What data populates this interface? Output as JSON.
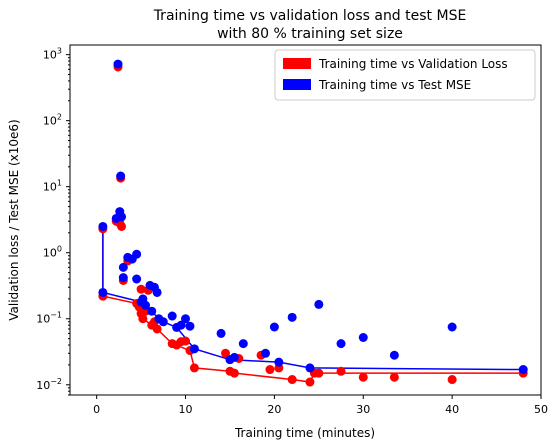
{
  "chart_data": {
    "type": "scatter",
    "title_lines": [
      "Training time vs validation loss and test MSE",
      "with 80 % training set size"
    ],
    "xlabel": "Training time (minutes)",
    "ylabel": "Validation loss / Test MSE (x10e6)",
    "xlim": [
      -3,
      50
    ],
    "ylim": [
      0.007,
      1400
    ],
    "yscale": "log",
    "xticks": [
      0,
      10,
      20,
      30,
      40,
      50
    ],
    "xtick_labels": [
      "0",
      "10",
      "20",
      "30",
      "40",
      "50"
    ],
    "yticks": [
      0.01,
      0.1,
      1,
      10,
      100,
      1000
    ],
    "ytick_labels": [
      {
        "base": "10",
        "exp": "−2"
      },
      {
        "base": "10",
        "exp": "−1"
      },
      {
        "base": "10",
        "exp": "0"
      },
      {
        "base": "10",
        "exp": "1"
      },
      {
        "base": "10",
        "exp": "2"
      },
      {
        "base": "10",
        "exp": "3"
      }
    ],
    "legend_position": "top-right",
    "series": [
      {
        "name": "Training time vs Validation Loss",
        "color": "#ff0000",
        "points": [
          [
            0.7,
            2.3
          ],
          [
            0.7,
            0.22
          ],
          [
            2.2,
            3.0
          ],
          [
            2.4,
            650
          ],
          [
            2.6,
            2.8
          ],
          [
            2.7,
            13.5
          ],
          [
            2.8,
            2.5
          ],
          [
            3.0,
            0.38
          ],
          [
            3.5,
            0.75
          ],
          [
            4.5,
            0.17
          ],
          [
            4.8,
            0.15
          ],
          [
            5.0,
            0.28
          ],
          [
            5.0,
            0.12
          ],
          [
            5.2,
            0.1
          ],
          [
            5.5,
            0.13
          ],
          [
            5.8,
            0.27
          ],
          [
            6.2,
            0.08
          ],
          [
            6.5,
            0.09
          ],
          [
            6.8,
            0.07
          ],
          [
            8.5,
            0.042
          ],
          [
            9.0,
            0.04
          ],
          [
            9.5,
            0.045
          ],
          [
            10.0,
            0.046
          ],
          [
            10.5,
            0.033
          ],
          [
            11.0,
            0.018
          ],
          [
            14.5,
            0.03
          ],
          [
            15.0,
            0.016
          ],
          [
            15.5,
            0.015
          ],
          [
            16.0,
            0.025
          ],
          [
            18.5,
            0.028
          ],
          [
            19.5,
            0.017
          ],
          [
            20.5,
            0.018
          ],
          [
            22.0,
            0.012
          ],
          [
            24.0,
            0.011
          ],
          [
            24.5,
            0.015
          ],
          [
            25.0,
            0.015
          ],
          [
            27.5,
            0.016
          ],
          [
            30.0,
            0.013
          ],
          [
            33.5,
            0.013
          ],
          [
            40.0,
            0.012
          ],
          [
            48.0,
            0.015
          ]
        ],
        "line": [
          [
            0.7,
            2.3
          ],
          [
            0.7,
            0.22
          ],
          [
            4.5,
            0.17
          ],
          [
            5.2,
            0.1
          ],
          [
            6.8,
            0.07
          ],
          [
            8.5,
            0.042
          ],
          [
            10.5,
            0.033
          ],
          [
            11.0,
            0.018
          ],
          [
            15.0,
            0.016
          ],
          [
            15.5,
            0.015
          ],
          [
            22.0,
            0.012
          ],
          [
            24.0,
            0.011
          ],
          [
            24.5,
            0.015
          ],
          [
            48.0,
            0.015
          ]
        ]
      },
      {
        "name": "Training time vs Test MSE",
        "color": "#0000ff",
        "points": [
          [
            0.7,
            2.5
          ],
          [
            0.7,
            0.25
          ],
          [
            2.2,
            3.3
          ],
          [
            2.4,
            720
          ],
          [
            2.6,
            4.2
          ],
          [
            2.7,
            14.5
          ],
          [
            2.8,
            3.5
          ],
          [
            3.0,
            0.6
          ],
          [
            3.0,
            0.42
          ],
          [
            3.5,
            0.85
          ],
          [
            4.0,
            0.8
          ],
          [
            4.5,
            0.95
          ],
          [
            4.5,
            0.4
          ],
          [
            5.0,
            0.18
          ],
          [
            5.2,
            0.2
          ],
          [
            5.5,
            0.16
          ],
          [
            6.0,
            0.32
          ],
          [
            6.2,
            0.13
          ],
          [
            6.5,
            0.3
          ],
          [
            6.8,
            0.25
          ],
          [
            7.0,
            0.1
          ],
          [
            7.5,
            0.09
          ],
          [
            8.5,
            0.11
          ],
          [
            9.0,
            0.074
          ],
          [
            9.5,
            0.08
          ],
          [
            10.0,
            0.1
          ],
          [
            10.5,
            0.077
          ],
          [
            11.0,
            0.035
          ],
          [
            14.0,
            0.06
          ],
          [
            15.0,
            0.024
          ],
          [
            15.5,
            0.026
          ],
          [
            16.5,
            0.042
          ],
          [
            19.0,
            0.03
          ],
          [
            20.0,
            0.075
          ],
          [
            20.5,
            0.022
          ],
          [
            22.0,
            0.105
          ],
          [
            24.0,
            0.018
          ],
          [
            25.0,
            0.165
          ],
          [
            27.5,
            0.042
          ],
          [
            30.0,
            0.052
          ],
          [
            33.5,
            0.028
          ],
          [
            40.0,
            0.075
          ],
          [
            48.0,
            0.017
          ]
        ],
        "line": [
          [
            0.7,
            2.5
          ],
          [
            0.7,
            0.25
          ],
          [
            5.0,
            0.18
          ],
          [
            5.5,
            0.16
          ],
          [
            6.2,
            0.13
          ],
          [
            7.0,
            0.1
          ],
          [
            7.5,
            0.09
          ],
          [
            9.0,
            0.074
          ],
          [
            11.0,
            0.035
          ],
          [
            15.0,
            0.024
          ],
          [
            20.5,
            0.022
          ],
          [
            24.0,
            0.018
          ],
          [
            48.0,
            0.017
          ]
        ]
      }
    ]
  }
}
